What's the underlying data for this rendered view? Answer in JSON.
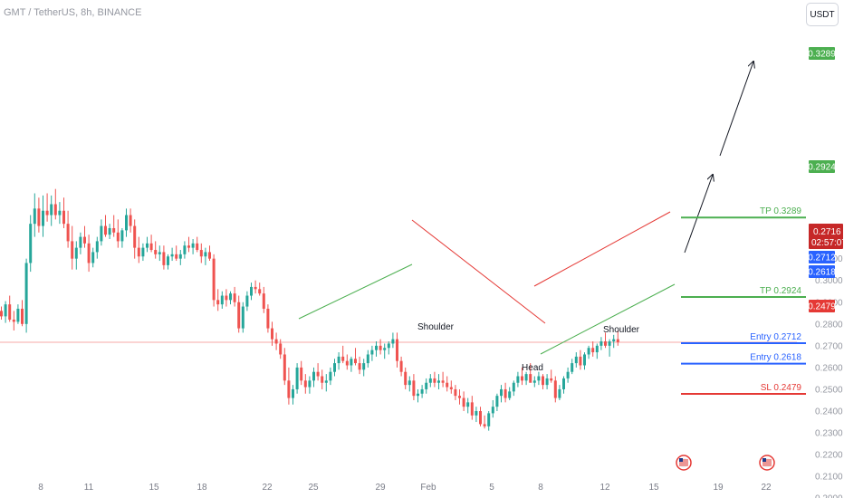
{
  "header": {
    "symbol_title": "GMT / TetherUS, 8h, BINANCE"
  },
  "currency_button": {
    "label": "USDT"
  },
  "y_axis": {
    "ticks": [
      "0.3200",
      "0.3100",
      "0.3000",
      "0.2900",
      "0.2800",
      "0.2700",
      "0.2600",
      "0.2500",
      "0.2400",
      "0.2300",
      "0.2200",
      "0.2100",
      "0.2000"
    ]
  },
  "x_axis": {
    "ticks": [
      "8",
      "11",
      "15",
      "18",
      "22",
      "25",
      "29",
      "Feb",
      "5",
      "8",
      "12",
      "15",
      "19",
      "22"
    ]
  },
  "chart_data": {
    "type": "candlestick",
    "symbol": "GMT / TetherUS",
    "interval": "8h",
    "exchange": "BINANCE",
    "ylim": [
      0.195,
      0.337
    ],
    "x_ticks": [
      "8",
      "11",
      "15",
      "18",
      "22",
      "25",
      "29",
      "Feb",
      "5",
      "8",
      "12",
      "15",
      "19",
      "22"
    ],
    "last_price": "0.2716",
    "countdown": "02:57:07",
    "levels": [
      {
        "label": "TP 0.3289",
        "tag": "0.3289",
        "value": 0.3289,
        "color": "#4caf50"
      },
      {
        "label": "TP 0.2924",
        "tag": "0.2924",
        "value": 0.2924,
        "color": "#4caf50"
      },
      {
        "label": "Entry 0.2712",
        "tag": "0.2712",
        "value": 0.2712,
        "color": "#2962ff"
      },
      {
        "label": "Entry 0.2618",
        "tag": "0.2618",
        "value": 0.2618,
        "color": "#2962ff"
      },
      {
        "label": "SL 0.2479",
        "tag": "0.2479",
        "value": 0.2479,
        "color": "#e53935"
      }
    ],
    "annotations": [
      "Shoulder",
      "Head",
      "Shoulder"
    ],
    "price_series": [
      [
        0.286,
        0.288,
        0.282,
        0.2835
      ],
      [
        0.2835,
        0.2905,
        0.2805,
        0.289
      ],
      [
        0.289,
        0.293,
        0.281,
        0.282
      ],
      [
        0.282,
        0.286,
        0.277,
        0.281
      ],
      [
        0.281,
        0.289,
        0.28,
        0.287
      ],
      [
        0.287,
        0.291,
        0.279,
        0.28
      ],
      [
        0.28,
        0.31,
        0.276,
        0.308
      ],
      [
        0.308,
        0.33,
        0.304,
        0.326
      ],
      [
        0.326,
        0.34,
        0.32,
        0.333
      ],
      [
        0.333,
        0.338,
        0.322,
        0.325
      ],
      [
        0.325,
        0.339,
        0.32,
        0.332
      ],
      [
        0.332,
        0.34,
        0.327,
        0.33
      ],
      [
        0.33,
        0.339,
        0.325,
        0.335
      ],
      [
        0.335,
        0.342,
        0.328,
        0.33
      ],
      [
        0.33,
        0.336,
        0.326,
        0.332
      ],
      [
        0.332,
        0.338,
        0.324,
        0.326
      ],
      [
        0.326,
        0.332,
        0.315,
        0.318
      ],
      [
        0.318,
        0.325,
        0.305,
        0.31
      ],
      [
        0.31,
        0.318,
        0.305,
        0.315
      ],
      [
        0.315,
        0.322,
        0.312,
        0.32
      ],
      [
        0.32,
        0.325,
        0.315,
        0.317
      ],
      [
        0.317,
        0.321,
        0.304,
        0.308
      ],
      [
        0.308,
        0.315,
        0.306,
        0.313
      ],
      [
        0.313,
        0.32,
        0.31,
        0.318
      ],
      [
        0.318,
        0.328,
        0.316,
        0.325
      ],
      [
        0.325,
        0.33,
        0.32,
        0.321
      ],
      [
        0.321,
        0.326,
        0.319,
        0.324
      ],
      [
        0.324,
        0.33,
        0.32,
        0.322
      ],
      [
        0.322,
        0.328,
        0.315,
        0.318
      ],
      [
        0.318,
        0.324,
        0.315,
        0.323
      ],
      [
        0.323,
        0.333,
        0.32,
        0.33
      ],
      [
        0.33,
        0.333,
        0.322,
        0.325
      ],
      [
        0.325,
        0.328,
        0.31,
        0.315
      ],
      [
        0.315,
        0.32,
        0.308,
        0.311
      ],
      [
        0.311,
        0.317,
        0.309,
        0.315
      ],
      [
        0.315,
        0.32,
        0.313,
        0.317
      ],
      [
        0.317,
        0.321,
        0.313,
        0.314
      ],
      [
        0.314,
        0.318,
        0.31,
        0.312
      ],
      [
        0.312,
        0.316,
        0.309,
        0.313
      ],
      [
        0.313,
        0.316,
        0.305,
        0.307
      ],
      [
        0.307,
        0.312,
        0.305,
        0.311
      ],
      [
        0.311,
        0.315,
        0.309,
        0.312
      ],
      [
        0.312,
        0.316,
        0.309,
        0.31
      ],
      [
        0.31,
        0.314,
        0.307,
        0.312
      ],
      [
        0.312,
        0.318,
        0.31,
        0.316
      ],
      [
        0.316,
        0.32,
        0.313,
        0.315
      ],
      [
        0.315,
        0.319,
        0.312,
        0.317
      ],
      [
        0.317,
        0.32,
        0.313,
        0.314
      ],
      [
        0.314,
        0.317,
        0.308,
        0.311
      ],
      [
        0.311,
        0.315,
        0.307,
        0.313
      ],
      [
        0.313,
        0.316,
        0.309,
        0.31
      ],
      [
        0.31,
        0.312,
        0.288,
        0.291
      ],
      [
        0.291,
        0.296,
        0.286,
        0.289
      ],
      [
        0.289,
        0.295,
        0.287,
        0.293
      ],
      [
        0.293,
        0.296,
        0.288,
        0.291
      ],
      [
        0.291,
        0.295,
        0.289,
        0.294
      ],
      [
        0.294,
        0.297,
        0.288,
        0.29
      ],
      [
        0.29,
        0.293,
        0.276,
        0.278
      ],
      [
        0.278,
        0.29,
        0.276,
        0.288
      ],
      [
        0.288,
        0.295,
        0.286,
        0.293
      ],
      [
        0.293,
        0.299,
        0.291,
        0.297
      ],
      [
        0.297,
        0.3,
        0.294,
        0.296
      ],
      [
        0.296,
        0.299,
        0.293,
        0.294
      ],
      [
        0.294,
        0.297,
        0.285,
        0.287
      ],
      [
        0.287,
        0.289,
        0.276,
        0.278
      ],
      [
        0.278,
        0.281,
        0.27,
        0.273
      ],
      [
        0.273,
        0.276,
        0.268,
        0.271
      ],
      [
        0.271,
        0.273,
        0.264,
        0.266
      ],
      [
        0.266,
        0.269,
        0.252,
        0.254
      ],
      [
        0.254,
        0.26,
        0.243,
        0.246
      ],
      [
        0.246,
        0.252,
        0.243,
        0.25
      ],
      [
        0.25,
        0.262,
        0.248,
        0.26
      ],
      [
        0.26,
        0.263,
        0.252,
        0.254
      ],
      [
        0.254,
        0.257,
        0.248,
        0.251
      ],
      [
        0.251,
        0.256,
        0.248,
        0.254
      ],
      [
        0.254,
        0.26,
        0.251,
        0.258
      ],
      [
        0.258,
        0.262,
        0.254,
        0.256
      ],
      [
        0.256,
        0.259,
        0.25,
        0.253
      ],
      [
        0.253,
        0.257,
        0.249,
        0.254
      ],
      [
        0.254,
        0.26,
        0.252,
        0.258
      ],
      [
        0.258,
        0.264,
        0.256,
        0.262
      ],
      [
        0.262,
        0.267,
        0.259,
        0.265
      ],
      [
        0.265,
        0.27,
        0.262,
        0.263
      ],
      [
        0.263,
        0.266,
        0.259,
        0.261
      ],
      [
        0.261,
        0.265,
        0.258,
        0.264
      ],
      [
        0.264,
        0.269,
        0.261,
        0.262
      ],
      [
        0.262,
        0.265,
        0.257,
        0.259
      ],
      [
        0.259,
        0.264,
        0.256,
        0.262
      ],
      [
        0.262,
        0.268,
        0.26,
        0.266
      ],
      [
        0.266,
        0.27,
        0.263,
        0.268
      ],
      [
        0.268,
        0.272,
        0.265,
        0.27
      ],
      [
        0.27,
        0.273,
        0.266,
        0.268
      ],
      [
        0.268,
        0.271,
        0.264,
        0.269
      ],
      [
        0.269,
        0.272,
        0.266,
        0.271
      ],
      [
        0.271,
        0.276,
        0.269,
        0.273
      ],
      [
        0.273,
        0.276,
        0.26,
        0.263
      ],
      [
        0.263,
        0.265,
        0.256,
        0.258
      ],
      [
        0.258,
        0.26,
        0.25,
        0.252
      ],
      [
        0.252,
        0.256,
        0.249,
        0.254
      ],
      [
        0.254,
        0.257,
        0.245,
        0.247
      ],
      [
        0.247,
        0.25,
        0.244,
        0.248
      ],
      [
        0.248,
        0.252,
        0.246,
        0.25
      ],
      [
        0.25,
        0.255,
        0.248,
        0.253
      ],
      [
        0.253,
        0.257,
        0.251,
        0.255
      ],
      [
        0.255,
        0.258,
        0.251,
        0.253
      ],
      [
        0.253,
        0.257,
        0.25,
        0.254
      ],
      [
        0.254,
        0.258,
        0.251,
        0.253
      ],
      [
        0.253,
        0.256,
        0.249,
        0.251
      ],
      [
        0.251,
        0.254,
        0.248,
        0.25
      ],
      [
        0.25,
        0.252,
        0.245,
        0.247
      ],
      [
        0.247,
        0.25,
        0.243,
        0.246
      ],
      [
        0.246,
        0.249,
        0.24,
        0.242
      ],
      [
        0.242,
        0.246,
        0.239,
        0.244
      ],
      [
        0.244,
        0.247,
        0.236,
        0.238
      ],
      [
        0.238,
        0.242,
        0.235,
        0.24
      ],
      [
        0.24,
        0.242,
        0.233,
        0.234
      ],
      [
        0.234,
        0.238,
        0.232,
        0.233
      ],
      [
        0.233,
        0.24,
        0.231,
        0.239
      ],
      [
        0.239,
        0.245,
        0.237,
        0.242
      ],
      [
        0.242,
        0.248,
        0.24,
        0.247
      ],
      [
        0.247,
        0.252,
        0.244,
        0.25
      ],
      [
        0.25,
        0.253,
        0.244,
        0.246
      ],
      [
        0.246,
        0.251,
        0.245,
        0.249
      ],
      [
        0.249,
        0.254,
        0.247,
        0.253
      ],
      [
        0.253,
        0.258,
        0.251,
        0.256
      ],
      [
        0.256,
        0.26,
        0.252,
        0.254
      ],
      [
        0.254,
        0.258,
        0.252,
        0.257
      ],
      [
        0.257,
        0.262,
        0.255,
        0.253
      ],
      [
        0.253,
        0.256,
        0.251,
        0.254
      ],
      [
        0.254,
        0.258,
        0.252,
        0.256
      ],
      [
        0.256,
        0.257,
        0.25,
        0.252
      ],
      [
        0.252,
        0.257,
        0.25,
        0.255
      ],
      [
        0.255,
        0.259,
        0.253,
        0.254
      ],
      [
        0.254,
        0.256,
        0.244,
        0.246
      ],
      [
        0.246,
        0.252,
        0.245,
        0.25
      ],
      [
        0.25,
        0.256,
        0.248,
        0.255
      ],
      [
        0.255,
        0.26,
        0.253,
        0.258
      ],
      [
        0.258,
        0.264,
        0.257,
        0.262
      ],
      [
        0.262,
        0.267,
        0.26,
        0.265
      ],
      [
        0.265,
        0.268,
        0.259,
        0.261
      ],
      [
        0.261,
        0.267,
        0.259,
        0.266
      ],
      [
        0.266,
        0.27,
        0.264,
        0.269
      ],
      [
        0.269,
        0.272,
        0.265,
        0.267
      ],
      [
        0.267,
        0.271,
        0.264,
        0.27
      ],
      [
        0.27,
        0.274,
        0.268,
        0.272
      ],
      [
        0.272,
        0.276,
        0.269,
        0.27
      ],
      [
        0.27,
        0.273,
        0.265,
        0.272
      ],
      [
        0.272,
        0.275,
        0.269,
        0.273
      ],
      [
        0.273,
        0.277,
        0.27,
        0.2716
      ]
    ]
  }
}
